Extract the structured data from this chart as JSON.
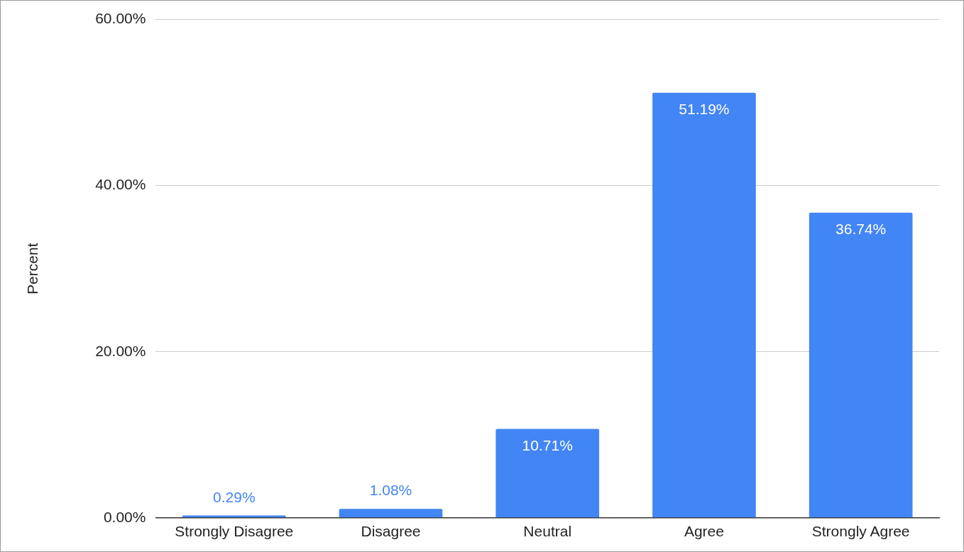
{
  "chart_data": {
    "type": "bar",
    "ylabel": "Percent",
    "categories": [
      "Strongly Disagree",
      "Disagree",
      "Neutral",
      "Agree",
      "Strongly Agree"
    ],
    "values": [
      0.29,
      1.08,
      10.71,
      51.19,
      36.74
    ],
    "value_labels": [
      "0.29%",
      "1.08%",
      "10.71%",
      "51.19%",
      "36.74%"
    ],
    "color": "#4285f4",
    "ylim": [
      0,
      60
    ],
    "yticks": [
      {
        "value": 0,
        "label": "0.00%"
      },
      {
        "value": 20,
        "label": "20.00%"
      },
      {
        "value": 40,
        "label": "40.00%"
      },
      {
        "value": 60,
        "label": "60.00%"
      }
    ],
    "grid": "y",
    "legend": false
  }
}
